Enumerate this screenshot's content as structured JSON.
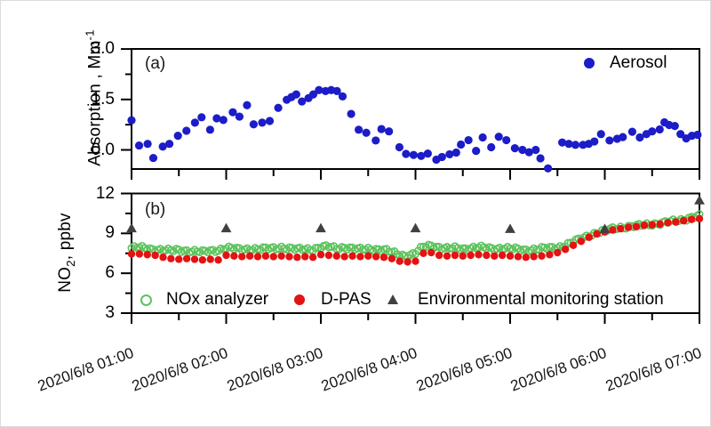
{
  "figure": {
    "panel_a": {
      "tag": "(a)",
      "ylabel": {
        "main": "Absorption , Mm",
        "sup": "-1"
      },
      "legend": {
        "aerosol": "Aerosol"
      }
    },
    "panel_b": {
      "tag": "(b)",
      "ylabel": {
        "main": "NO",
        "sub": "2",
        "rest": ", ppbv"
      },
      "legend": {
        "nox": "NOx analyzer",
        "dpas": "D-PAS",
        "ems": "Environmental monitoring station"
      }
    }
  },
  "colors": {
    "aerosol": "#1c1cc8",
    "nox": "#5cc35c",
    "dpas": "#e51212",
    "ems": "#3f4042",
    "axis": "#000000"
  },
  "chart_data": [
    {
      "type": "scatter",
      "panel": "a",
      "label": "(a)",
      "ylabel": "Absorption, Mm^-1",
      "x_unit": "time on 2020/6/8, decimal hours",
      "xlim": [
        1,
        7
      ],
      "ylim": [
        -0.57,
        3.0
      ],
      "yticks": [
        0.0,
        1.5,
        3.0
      ],
      "ytick_labels": [
        "0.0",
        "1.5",
        "3.0"
      ],
      "yticks_minor": [
        0.75,
        2.25
      ],
      "xticks": [
        1,
        2,
        3,
        4,
        5,
        6,
        7
      ],
      "xticks_minor": [
        1.5,
        2.5,
        3.5,
        4.5,
        5.5,
        6.5
      ],
      "grid": false,
      "legend_position": "top-right",
      "series": [
        {
          "name": "Aerosol",
          "marker": "filled-circle",
          "color": "#1c1cc8",
          "x": [
            1.0,
            1.08,
            1.17,
            1.23,
            1.33,
            1.4,
            1.49,
            1.58,
            1.67,
            1.74,
            1.83,
            1.9,
            1.97,
            2.07,
            2.14,
            2.22,
            2.29,
            2.38,
            2.46,
            2.55,
            2.64,
            2.69,
            2.74,
            2.8,
            2.87,
            2.92,
            2.98,
            3.05,
            3.11,
            3.17,
            3.23,
            3.32,
            3.4,
            3.48,
            3.58,
            3.64,
            3.72,
            3.83,
            3.9,
            3.98,
            4.06,
            4.13,
            4.22,
            4.28,
            4.36,
            4.43,
            4.48,
            4.56,
            4.64,
            4.71,
            4.8,
            4.88,
            4.96,
            5.05,
            5.13,
            5.2,
            5.27,
            5.32,
            5.4,
            5.55,
            5.62,
            5.69,
            5.77,
            5.83,
            5.89,
            5.96,
            6.05,
            6.13,
            6.19,
            6.29,
            6.37,
            6.44,
            6.5,
            6.58,
            6.63,
            6.68,
            6.74,
            6.8,
            6.86,
            6.92,
            6.98
          ],
          "y": [
            0.88,
            0.13,
            0.18,
            -0.24,
            0.1,
            0.18,
            0.42,
            0.57,
            0.81,
            0.97,
            0.6,
            0.94,
            0.89,
            1.12,
            0.99,
            1.33,
            0.76,
            0.81,
            0.86,
            1.25,
            1.49,
            1.57,
            1.65,
            1.44,
            1.54,
            1.65,
            1.78,
            1.75,
            1.78,
            1.75,
            1.59,
            1.07,
            0.6,
            0.51,
            0.28,
            0.62,
            0.55,
            0.08,
            -0.12,
            -0.15,
            -0.18,
            -0.11,
            -0.29,
            -0.21,
            -0.13,
            -0.08,
            0.16,
            0.29,
            -0.03,
            0.37,
            0.08,
            0.39,
            0.29,
            0.05,
            0.0,
            -0.07,
            0.0,
            -0.25,
            -0.55,
            0.22,
            0.18,
            0.15,
            0.15,
            0.18,
            0.25,
            0.47,
            0.28,
            0.33,
            0.38,
            0.54,
            0.37,
            0.47,
            0.55,
            0.61,
            0.82,
            0.74,
            0.71,
            0.47,
            0.34,
            0.42,
            0.45
          ]
        }
      ]
    },
    {
      "type": "scatter",
      "panel": "b",
      "label": "(b)",
      "ylabel": "NO2, ppbv",
      "x_unit": "time on 2020/6/8, decimal hours",
      "xlim": [
        1,
        7
      ],
      "ylim": [
        3,
        12
      ],
      "yticks": [
        3,
        6,
        9,
        12
      ],
      "ytick_labels": [
        "3",
        "6",
        "9",
        "12"
      ],
      "yticks_minor": [
        4.5,
        7.5,
        10.5
      ],
      "xticks": [
        1,
        2,
        3,
        4,
        5,
        6,
        7
      ],
      "xticks_minor": [
        1.5,
        2.5,
        3.5,
        4.5,
        5.5,
        6.5
      ],
      "xtick_labels": [
        "2020/6/8 01:00",
        "2020/6/8 02:00",
        "2020/6/8 03:00",
        "2020/6/8 04:00",
        "2020/6/8 05:00",
        "2020/6/8 06:00",
        "2020/6/8 07:00"
      ],
      "grid": false,
      "legend_position": "bottom-inside",
      "series": [
        {
          "name": "NOx analyzer",
          "marker": "open-circle",
          "color": "#5cc35c",
          "x_start": 1,
          "x_step": 0.0833333,
          "y": [
            7.9,
            7.95,
            7.85,
            7.8,
            7.75,
            7.7,
            7.75,
            7.7,
            7.65,
            7.6,
            7.7,
            7.75,
            7.9,
            7.85,
            7.8,
            7.85,
            7.8,
            7.85,
            7.9,
            7.95,
            7.85,
            7.8,
            7.85,
            7.8,
            7.95,
            8.0,
            7.9,
            7.95,
            7.85,
            7.8,
            7.85,
            7.8,
            7.75,
            7.6,
            7.4,
            7.3,
            7.5,
            8.0,
            8.1,
            7.95,
            7.85,
            7.9,
            7.85,
            7.9,
            7.95,
            7.9,
            7.85,
            7.9,
            7.85,
            7.8,
            7.75,
            7.8,
            7.85,
            7.9,
            7.95,
            8.1,
            8.35,
            8.6,
            8.85,
            9.05,
            9.2,
            9.35,
            9.45,
            9.5,
            9.55,
            9.65,
            9.7,
            9.75,
            9.85,
            9.95,
            10.05,
            10.2,
            10.3
          ]
        },
        {
          "name": "D-PAS",
          "marker": "filled-circle",
          "color": "#e51212",
          "x_start": 1,
          "x_step": 0.0833333,
          "y": [
            7.45,
            7.45,
            7.4,
            7.35,
            7.2,
            7.1,
            7.05,
            7.1,
            7.05,
            7.0,
            7.05,
            7.0,
            7.35,
            7.3,
            7.25,
            7.3,
            7.25,
            7.3,
            7.25,
            7.3,
            7.25,
            7.2,
            7.25,
            7.2,
            7.4,
            7.35,
            7.3,
            7.25,
            7.3,
            7.25,
            7.3,
            7.25,
            7.2,
            7.1,
            6.9,
            6.85,
            6.9,
            7.5,
            7.55,
            7.35,
            7.3,
            7.35,
            7.3,
            7.35,
            7.4,
            7.35,
            7.3,
            7.35,
            7.3,
            7.25,
            7.2,
            7.25,
            7.3,
            7.4,
            7.55,
            7.8,
            8.1,
            8.4,
            8.7,
            8.95,
            9.1,
            9.25,
            9.35,
            9.45,
            9.5,
            9.6,
            9.65,
            9.7,
            9.8,
            9.85,
            9.95,
            10.05,
            10.1
          ]
        },
        {
          "name": "Environmental monitoring station",
          "marker": "filled-triangle",
          "color": "#3f4042",
          "x": [
            1,
            2,
            3,
            4,
            5,
            6,
            7
          ],
          "y": [
            9.4,
            9.4,
            9.4,
            9.4,
            9.35,
            9.35,
            11.5
          ]
        }
      ]
    }
  ]
}
